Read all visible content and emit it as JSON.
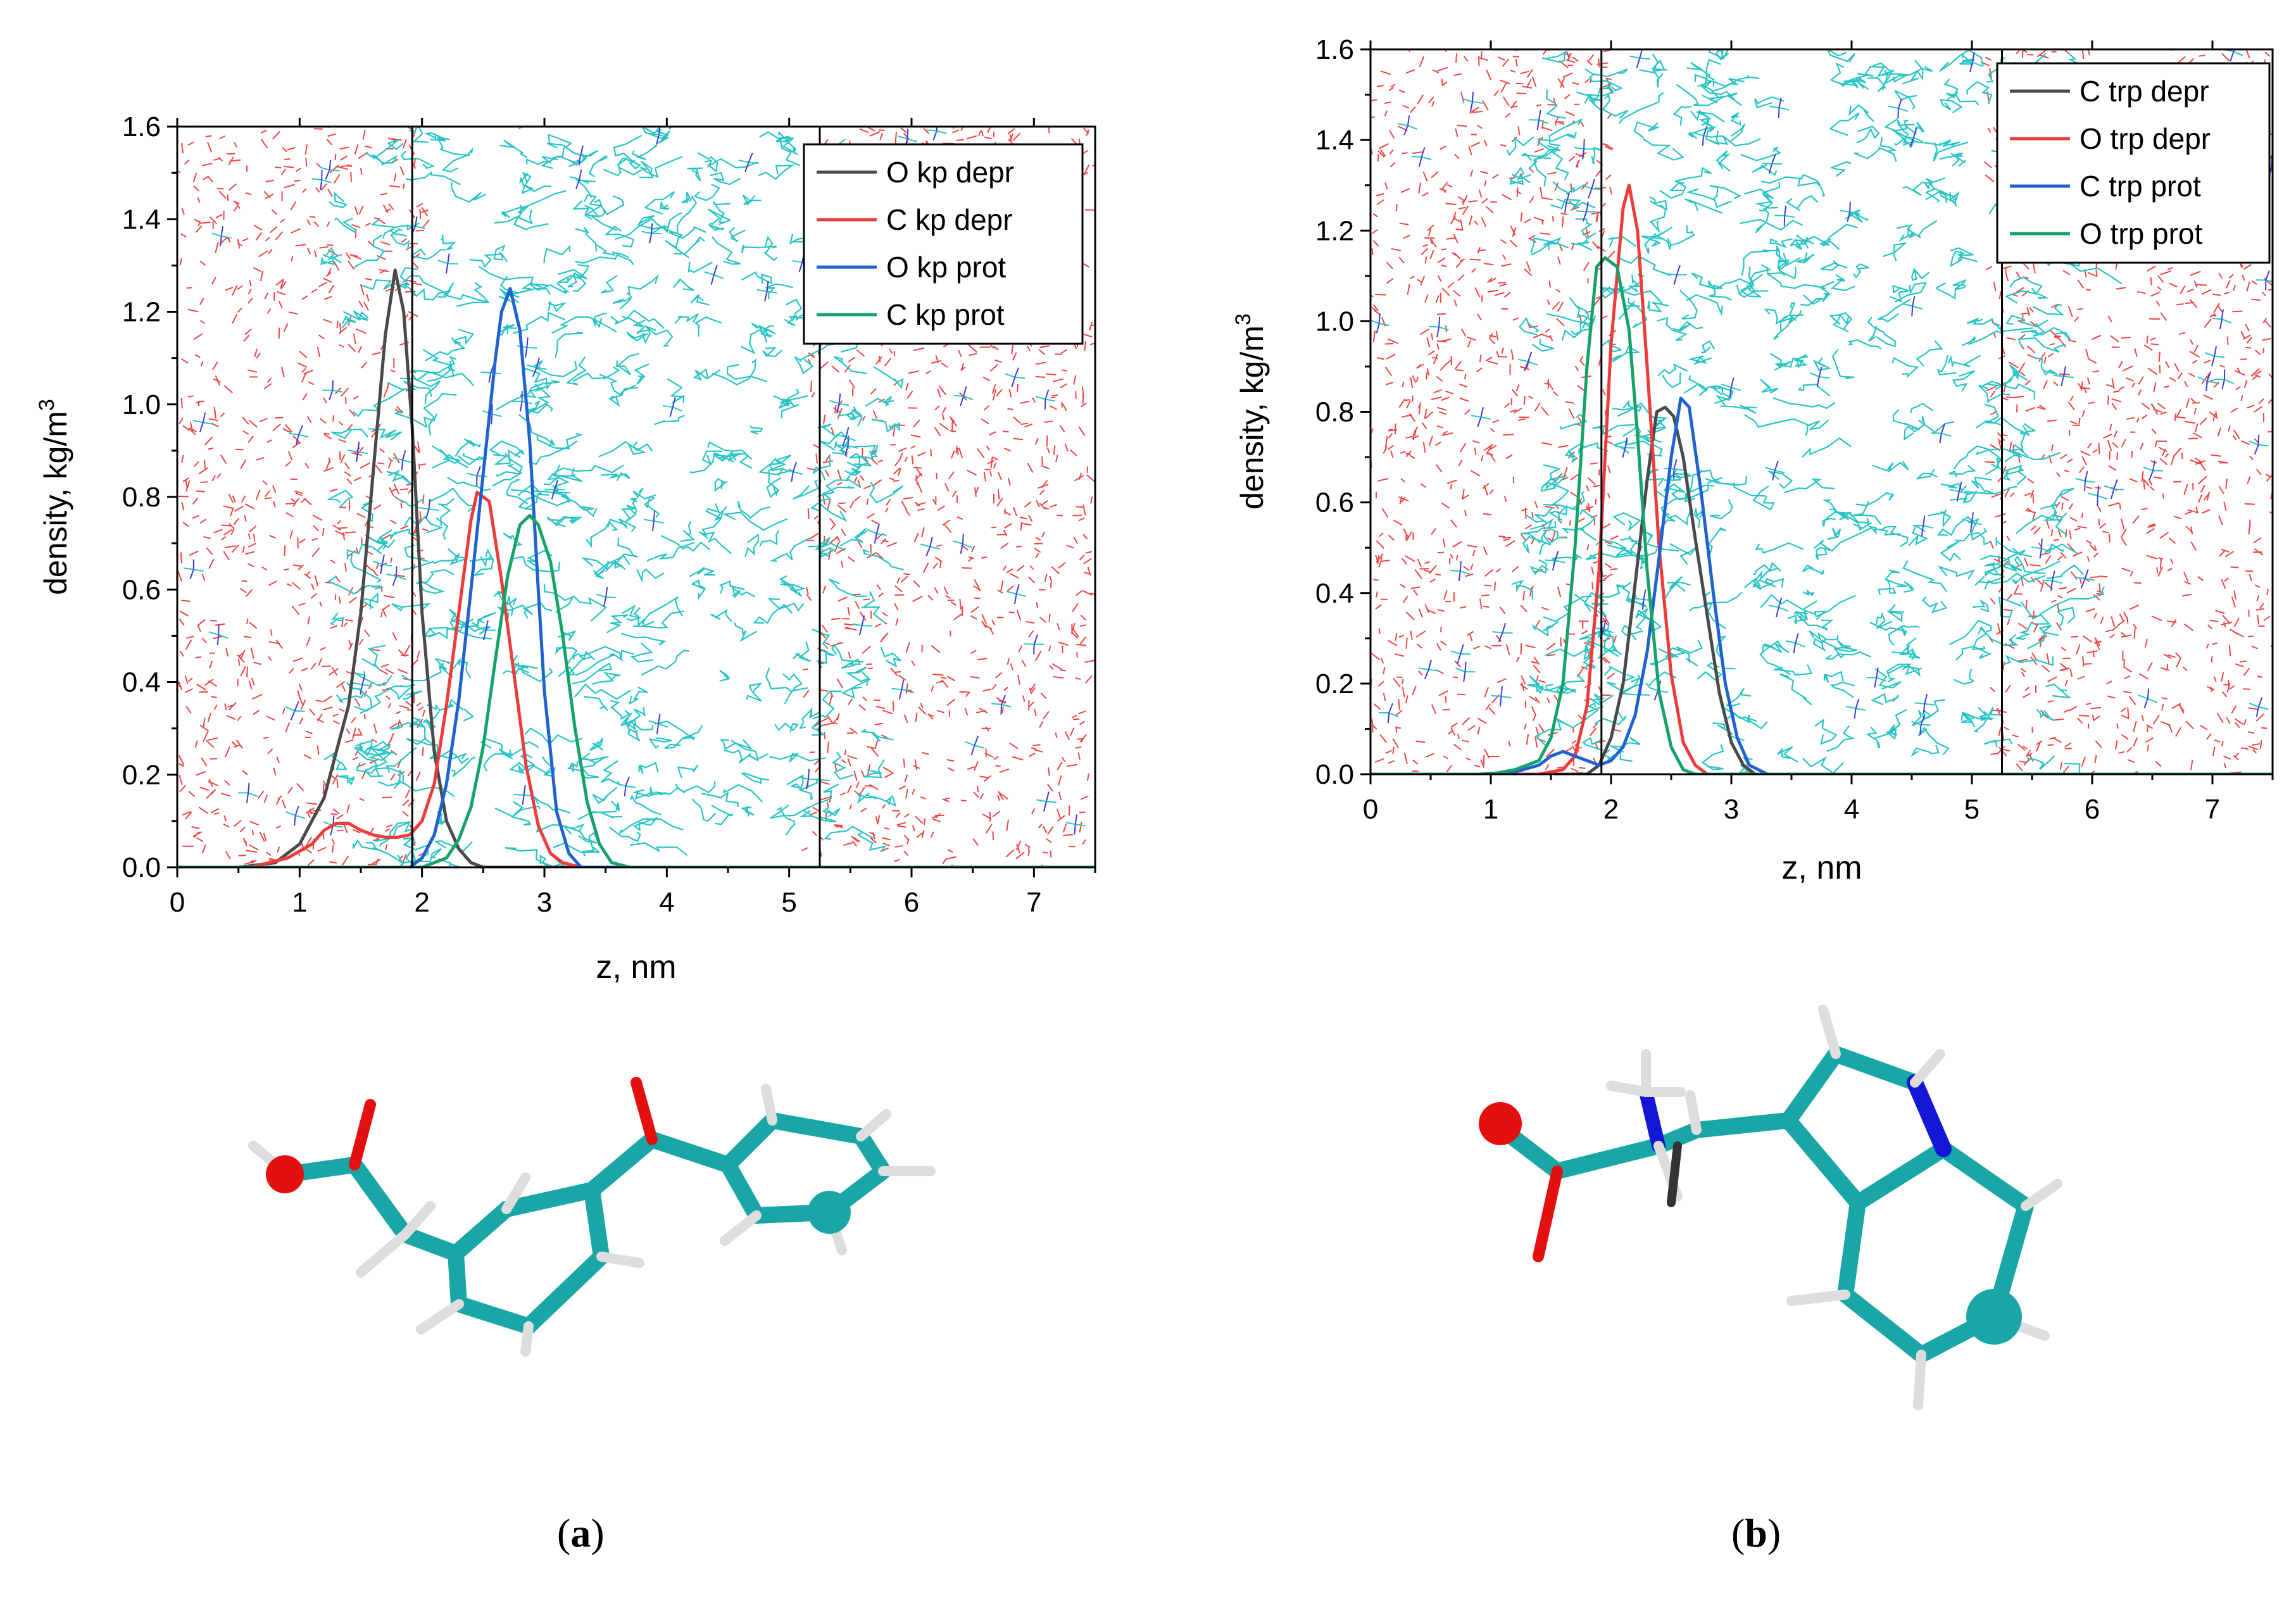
{
  "colors": {
    "dark": "#4a4a4a",
    "red": "#ee3b3b",
    "blue": "#1f62d0",
    "green": "#16a36a",
    "cyan": "#27c4c4",
    "water_red": "#ee4444",
    "purple": "#3a3ad8",
    "oxygen": "#e40f0f",
    "nitrogen": "#1418d6"
  },
  "panels": [
    {
      "label": "a",
      "caption_open": "(",
      "caption_close": ")",
      "chart_data": {
        "type": "line",
        "xlabel": "z, nm",
        "ylabel": "density, kg/m",
        "ylabel_sup": "3",
        "xlim": [
          0,
          7.5
        ],
        "ylim": [
          0,
          1.6
        ],
        "xticks": [
          0,
          1,
          2,
          3,
          4,
          5,
          6,
          7
        ],
        "yticks": [
          0.0,
          0.2,
          0.4,
          0.6,
          0.8,
          1.0,
          1.2,
          1.4,
          1.6
        ],
        "interfaces": [
          1.92,
          5.25
        ],
        "legend_position": "top-right",
        "series": [
          {
            "name": "O kp depr",
            "color": "#4a4a4a",
            "x": [
              0.0,
              0.5,
              0.8,
              1.0,
              1.2,
              1.4,
              1.5,
              1.6,
              1.7,
              1.78,
              1.85,
              1.92,
              2.0,
              2.1,
              2.2,
              2.3,
              2.4,
              2.5,
              3.0,
              7.5
            ],
            "y": [
              0,
              0,
              0.01,
              0.05,
              0.15,
              0.35,
              0.55,
              0.85,
              1.15,
              1.29,
              1.2,
              0.95,
              0.55,
              0.25,
              0.1,
              0.04,
              0.01,
              0,
              0,
              0
            ]
          },
          {
            "name": "C kp depr",
            "color": "#ee3b3b",
            "x": [
              0.0,
              0.6,
              0.9,
              1.1,
              1.2,
              1.3,
              1.4,
              1.5,
              1.6,
              1.7,
              1.8,
              1.9,
              2.0,
              2.1,
              2.2,
              2.3,
              2.4,
              2.45,
              2.55,
              2.65,
              2.75,
              2.85,
              2.95,
              3.05,
              3.15,
              3.3,
              7.5
            ],
            "y": [
              0,
              0,
              0.02,
              0.05,
              0.08,
              0.095,
              0.095,
              0.08,
              0.07,
              0.065,
              0.065,
              0.07,
              0.1,
              0.18,
              0.35,
              0.55,
              0.75,
              0.81,
              0.79,
              0.62,
              0.42,
              0.22,
              0.09,
              0.03,
              0.01,
              0,
              0
            ]
          },
          {
            "name": "O kp prot",
            "color": "#1f62d0",
            "x": [
              0.0,
              1.9,
              2.0,
              2.1,
              2.2,
              2.3,
              2.4,
              2.5,
              2.6,
              2.65,
              2.72,
              2.8,
              2.88,
              2.95,
              3.0,
              3.1,
              3.2,
              3.3,
              7.5
            ],
            "y": [
              0,
              0,
              0.02,
              0.07,
              0.18,
              0.36,
              0.6,
              0.85,
              1.1,
              1.2,
              1.25,
              1.16,
              0.92,
              0.6,
              0.38,
              0.12,
              0.03,
              0,
              0
            ]
          },
          {
            "name": "C kp prot",
            "color": "#16a36a",
            "x": [
              0.0,
              2.0,
              2.2,
              2.3,
              2.4,
              2.5,
              2.6,
              2.7,
              2.8,
              2.88,
              2.95,
              3.05,
              3.15,
              3.25,
              3.35,
              3.45,
              3.55,
              3.7,
              7.5
            ],
            "y": [
              0,
              0,
              0.02,
              0.06,
              0.13,
              0.26,
              0.45,
              0.63,
              0.74,
              0.76,
              0.74,
              0.66,
              0.5,
              0.3,
              0.14,
              0.05,
              0.01,
              0,
              0
            ]
          }
        ]
      }
    },
    {
      "label": "b",
      "caption_open": "(",
      "caption_close": ")",
      "chart_data": {
        "type": "line",
        "xlabel": "z, nm",
        "ylabel": "density, kg/m",
        "ylabel_sup": "3",
        "xlim": [
          0,
          7.5
        ],
        "ylim": [
          0,
          1.6
        ],
        "xticks": [
          0,
          1,
          2,
          3,
          4,
          5,
          6,
          7
        ],
        "yticks": [
          0.0,
          0.2,
          0.4,
          0.6,
          0.8,
          1.0,
          1.2,
          1.4,
          1.6
        ],
        "interfaces": [
          1.92,
          5.25
        ],
        "legend_position": "top-right",
        "series": [
          {
            "name": "C trp depr",
            "color": "#4a4a4a",
            "x": [
              0.0,
              1.8,
              1.9,
              2.0,
              2.1,
              2.2,
              2.3,
              2.38,
              2.45,
              2.52,
              2.6,
              2.7,
              2.8,
              2.9,
              3.0,
              3.1,
              3.2,
              7.5
            ],
            "y": [
              0,
              0,
              0.02,
              0.08,
              0.2,
              0.42,
              0.65,
              0.8,
              0.81,
              0.79,
              0.7,
              0.52,
              0.35,
              0.18,
              0.07,
              0.02,
              0,
              0
            ]
          },
          {
            "name": "O trp depr",
            "color": "#ee3b3b",
            "x": [
              0.0,
              1.4,
              1.6,
              1.7,
              1.8,
              1.9,
              2.0,
              2.1,
              2.15,
              2.22,
              2.3,
              2.4,
              2.5,
              2.6,
              2.7,
              2.8,
              7.5
            ],
            "y": [
              0,
              0,
              0.01,
              0.04,
              0.15,
              0.45,
              0.95,
              1.25,
              1.3,
              1.2,
              0.9,
              0.5,
              0.22,
              0.07,
              0.02,
              0,
              0
            ]
          },
          {
            "name": "C trp prot",
            "color": "#1f62d0",
            "x": [
              0.0,
              0.9,
              1.2,
              1.4,
              1.5,
              1.6,
              1.7,
              1.8,
              1.9,
              2.0,
              2.1,
              2.2,
              2.3,
              2.4,
              2.5,
              2.58,
              2.65,
              2.75,
              2.85,
              2.95,
              3.05,
              3.15,
              3.3,
              7.5
            ],
            "y": [
              0,
              0,
              0.005,
              0.02,
              0.04,
              0.05,
              0.04,
              0.03,
              0.02,
              0.03,
              0.06,
              0.13,
              0.27,
              0.48,
              0.7,
              0.83,
              0.81,
              0.62,
              0.4,
              0.2,
              0.08,
              0.02,
              0,
              0
            ]
          },
          {
            "name": "O trp prot",
            "color": "#16a36a",
            "x": [
              0.0,
              1.0,
              1.2,
              1.4,
              1.5,
              1.6,
              1.7,
              1.8,
              1.88,
              1.95,
              2.05,
              2.15,
              2.22,
              2.3,
              2.4,
              2.5,
              2.6,
              2.7,
              7.5
            ],
            "y": [
              0,
              0,
              0.01,
              0.03,
              0.08,
              0.2,
              0.5,
              0.9,
              1.12,
              1.14,
              1.12,
              0.98,
              0.75,
              0.45,
              0.18,
              0.06,
              0.01,
              0,
              0
            ]
          }
        ]
      }
    }
  ]
}
